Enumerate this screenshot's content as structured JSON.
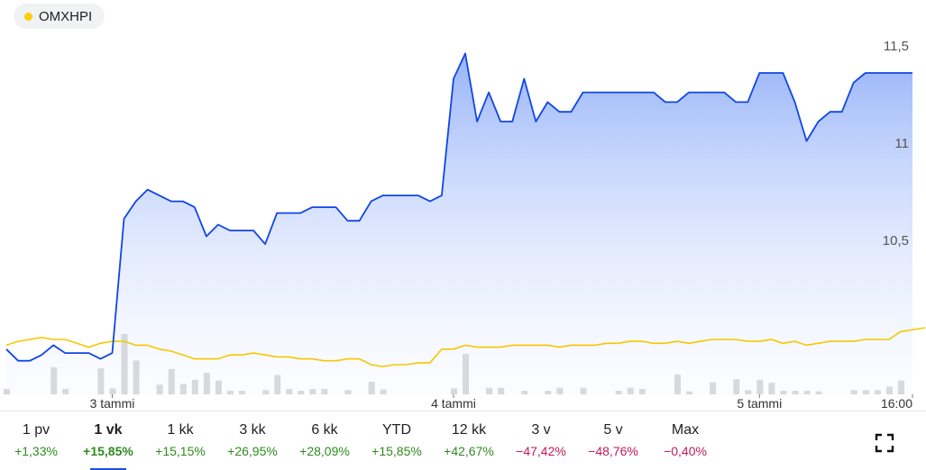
{
  "legend": {
    "label": "OMXHPI",
    "dot_color": "#ffcc00"
  },
  "colors": {
    "primary_line": "#1046e6",
    "comparison_line": "#f5c800",
    "volume": "#d5d5d5",
    "positive": "#2e8b1f",
    "negative": "#c2185b",
    "grid_text": "#555555"
  },
  "periods": [
    {
      "label": "1 pv",
      "change": "+1,33%",
      "sign": "positive"
    },
    {
      "label": "1 vk",
      "change": "+15,85%",
      "sign": "positive",
      "active": true
    },
    {
      "label": "1 kk",
      "change": "+15,15%",
      "sign": "positive"
    },
    {
      "label": "3 kk",
      "change": "+26,95%",
      "sign": "positive"
    },
    {
      "label": "6 kk",
      "change": "+28,09%",
      "sign": "positive"
    },
    {
      "label": "YTD",
      "change": "+15,85%",
      "sign": "positive"
    },
    {
      "label": "12 kk",
      "change": "+42,67%",
      "sign": "positive"
    },
    {
      "label": "3 v",
      "change": "−47,42%",
      "sign": "negative"
    },
    {
      "label": "5 v",
      "change": "−48,76%",
      "sign": "negative"
    },
    {
      "label": "Max",
      "change": "−0,40%",
      "sign": "negative"
    }
  ],
  "chart_data": {
    "type": "area",
    "y_ticks": [
      "11,5",
      "11",
      "10,5"
    ],
    "y_tick_values": [
      11.5,
      11,
      10.5
    ],
    "ylim": [
      9.8,
      11.55
    ],
    "x_ticks": [
      "3 tammi",
      "4 tammi",
      "5 tammi",
      "16:00"
    ],
    "x_tick_index": [
      9,
      38,
      64,
      77
    ],
    "grid": false,
    "series": [
      {
        "type": "area",
        "values": [
          9.94,
          9.88,
          9.88,
          9.91,
          9.96,
          9.92,
          9.92,
          9.92,
          9.89,
          9.92,
          10.61,
          10.7,
          10.76,
          10.73,
          10.7,
          10.7,
          10.67,
          10.52,
          10.58,
          10.55,
          10.55,
          10.55,
          10.48,
          10.64,
          10.64,
          10.64,
          10.67,
          10.67,
          10.67,
          10.6,
          10.6,
          10.7,
          10.73,
          10.73,
          10.73,
          10.73,
          10.7,
          10.73,
          11.33,
          11.46,
          11.11,
          11.26,
          11.11,
          11.11,
          11.33,
          11.11,
          11.21,
          11.16,
          11.16,
          11.26,
          11.26,
          11.26,
          11.26,
          11.26,
          11.26,
          11.26,
          11.21,
          11.21,
          11.26,
          11.26,
          11.26,
          11.26,
          11.21,
          11.21,
          11.36,
          11.36,
          11.36,
          11.21,
          11.01,
          11.11,
          11.16,
          11.16,
          11.31,
          11.36,
          11.36,
          11.36,
          11.36,
          11.36
        ]
      },
      {
        "type": "line",
        "values": [
          9.96,
          9.98,
          9.99,
          10.0,
          9.99,
          9.99,
          9.97,
          9.95,
          9.97,
          9.98,
          9.98,
          9.96,
          9.96,
          9.94,
          9.93,
          9.91,
          9.89,
          9.89,
          9.89,
          9.91,
          9.91,
          9.92,
          9.91,
          9.9,
          9.9,
          9.89,
          9.89,
          9.88,
          9.88,
          9.89,
          9.89,
          9.86,
          9.85,
          9.86,
          9.86,
          9.87,
          9.87,
          9.94,
          9.94,
          9.96,
          9.95,
          9.95,
          9.95,
          9.96,
          9.96,
          9.96,
          9.96,
          9.95,
          9.96,
          9.96,
          9.96,
          9.97,
          9.97,
          9.98,
          9.98,
          9.97,
          9.97,
          9.98,
          9.97,
          9.98,
          9.99,
          9.99,
          9.99,
          9.98,
          9.98,
          9.99,
          9.97,
          9.98,
          9.96,
          9.97,
          9.98,
          9.98,
          9.98,
          9.99,
          9.99,
          9.99,
          10.03,
          10.05
        ]
      }
    ],
    "volume_rel": [
      0.09,
      0,
      0,
      0,
      0.45,
      0.09,
      0,
      0,
      0.43,
      0.1,
      1.0,
      0.56,
      0,
      0.16,
      0.42,
      0.17,
      0.24,
      0.36,
      0.23,
      0.06,
      0.06,
      0,
      0.07,
      0.32,
      0.09,
      0.06,
      0.09,
      0.09,
      0,
      0.07,
      0,
      0.21,
      0.08,
      0,
      0,
      0,
      0,
      0,
      0.1,
      0.67,
      0,
      0.11,
      0.11,
      0,
      0.06,
      0,
      0.06,
      0.11,
      0,
      0.11,
      0,
      0,
      0.06,
      0.11,
      0.09,
      0,
      0,
      0.33,
      0.05,
      0,
      0.2,
      0,
      0.25,
      0.07,
      0.24,
      0.19,
      0.06,
      0.06,
      0.06,
      0.05,
      0,
      0,
      0.07,
      0.07,
      0.07,
      0.13,
      0.23,
      0
    ]
  }
}
